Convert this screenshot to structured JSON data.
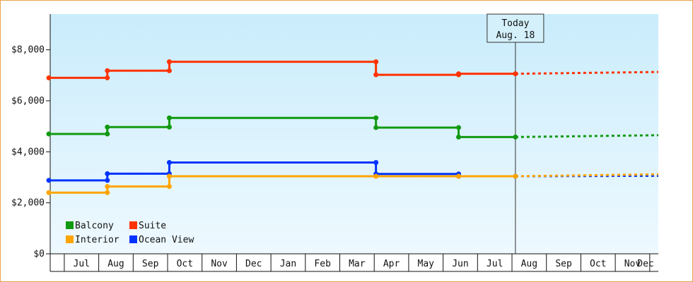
{
  "chart_data": {
    "type": "line",
    "title": "",
    "xlabel": "",
    "ylabel": "",
    "ylim": [
      0,
      9400
    ],
    "yticks": [
      0,
      2000,
      4000,
      6000,
      8000
    ],
    "ytick_labels": [
      "$0",
      "$2,000",
      "$4,000",
      "$6,000",
      "$8,000"
    ],
    "x_months": [
      "Jul",
      "Aug",
      "Sep",
      "Oct",
      "Nov",
      "Dec",
      "Jan",
      "Feb",
      "Mar",
      "Apr",
      "May",
      "Jun",
      "Jul",
      "Aug",
      "Sep",
      "Oct",
      "Nov",
      "Dec"
    ],
    "today": {
      "label_line1": "Today",
      "label_line2": "Aug. 18",
      "x": 13.55
    },
    "legend": {
      "placement": "bottom-left",
      "columns": 2
    },
    "colors": {
      "background_top": "#c9ecfb",
      "background_bottom": "#eef9ff",
      "frame": "#e8a24a"
    },
    "series": [
      {
        "name": "Suite",
        "color": "#ff3300",
        "points": [
          {
            "x": 0.0,
            "y": 6900
          },
          {
            "x": 1.7,
            "y": 6900
          },
          {
            "x": 1.7,
            "y": 7180
          },
          {
            "x": 3.5,
            "y": 7180
          },
          {
            "x": 3.5,
            "y": 7530
          },
          {
            "x": 9.5,
            "y": 7530
          },
          {
            "x": 9.5,
            "y": 7020
          },
          {
            "x": 11.9,
            "y": 7020
          },
          {
            "x": 11.9,
            "y": 7060
          },
          {
            "x": 13.55,
            "y": 7060
          }
        ],
        "projection": [
          {
            "x": 13.55,
            "y": 7060
          },
          {
            "x": 18.3,
            "y": 7130
          }
        ]
      },
      {
        "name": "Balcony",
        "color": "#119911",
        "points": [
          {
            "x": 0.0,
            "y": 4700
          },
          {
            "x": 1.7,
            "y": 4700
          },
          {
            "x": 1.7,
            "y": 4970
          },
          {
            "x": 3.5,
            "y": 4970
          },
          {
            "x": 3.5,
            "y": 5330
          },
          {
            "x": 9.5,
            "y": 5330
          },
          {
            "x": 9.5,
            "y": 4950
          },
          {
            "x": 11.9,
            "y": 4950
          },
          {
            "x": 11.9,
            "y": 4580
          },
          {
            "x": 13.55,
            "y": 4580
          }
        ],
        "projection": [
          {
            "x": 13.55,
            "y": 4580
          },
          {
            "x": 18.3,
            "y": 4650
          }
        ]
      },
      {
        "name": "Ocean View",
        "color": "#0033ff",
        "points": [
          {
            "x": 0.0,
            "y": 2880
          },
          {
            "x": 1.7,
            "y": 2880
          },
          {
            "x": 1.7,
            "y": 3140
          },
          {
            "x": 3.5,
            "y": 3140
          },
          {
            "x": 3.5,
            "y": 3580
          },
          {
            "x": 9.5,
            "y": 3580
          },
          {
            "x": 9.5,
            "y": 3130
          },
          {
            "x": 11.9,
            "y": 3130
          },
          {
            "x": 11.9,
            "y": 3040
          },
          {
            "x": 13.55,
            "y": 3040
          }
        ],
        "projection": [
          {
            "x": 13.55,
            "y": 3040
          },
          {
            "x": 18.3,
            "y": 3060
          }
        ]
      },
      {
        "name": "Interior",
        "color": "#ffa500",
        "points": [
          {
            "x": 0.0,
            "y": 2400
          },
          {
            "x": 1.7,
            "y": 2400
          },
          {
            "x": 1.7,
            "y": 2640
          },
          {
            "x": 3.5,
            "y": 2640
          },
          {
            "x": 3.5,
            "y": 3040
          },
          {
            "x": 9.5,
            "y": 3040
          },
          {
            "x": 11.9,
            "y": 3040
          },
          {
            "x": 13.55,
            "y": 3040
          }
        ],
        "projection": [
          {
            "x": 13.55,
            "y": 3040
          },
          {
            "x": 18.3,
            "y": 3120
          }
        ]
      }
    ],
    "legend_order": [
      "Balcony",
      "Suite",
      "Interior",
      "Ocean View"
    ]
  }
}
